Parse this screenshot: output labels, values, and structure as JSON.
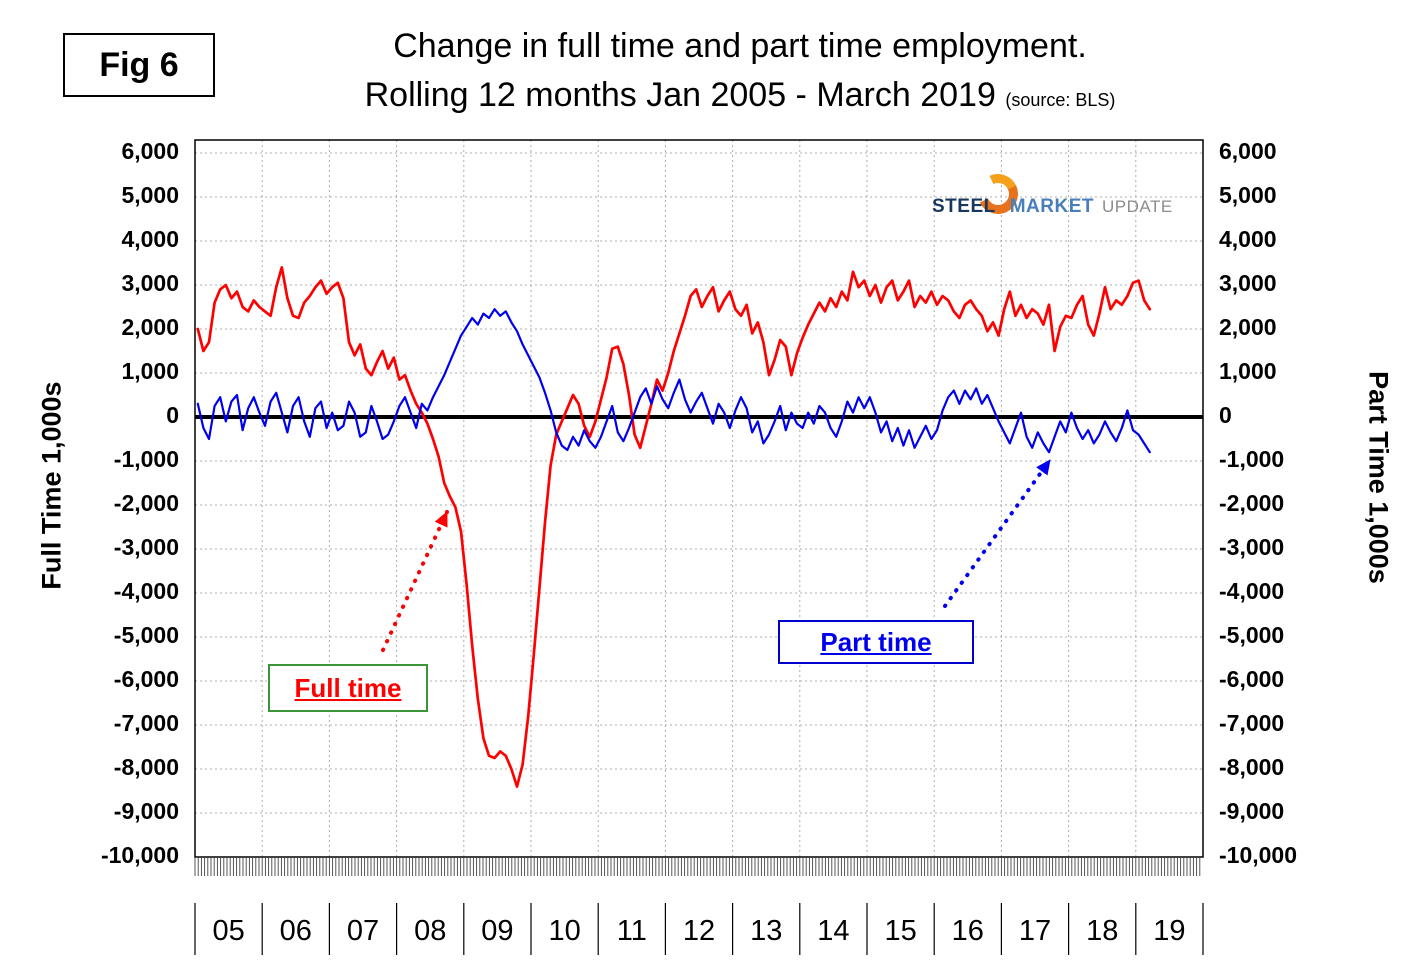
{
  "fig_label": "Fig 6",
  "title": {
    "line1": "Change in full time and part time employment.",
    "line2": "Rolling 12 months Jan 2005 - March 2019",
    "source": "(source: BLS)"
  },
  "logo": {
    "word1": "STEEL",
    "word2": "MARKET",
    "word3": "UPDATE"
  },
  "axes": {
    "left_title": "Full Time 1,000s",
    "right_title": "Part Time 1,000s"
  },
  "annotations": {
    "full_time_label": "Full time",
    "part_time_label": "Part time"
  },
  "colors": {
    "full_time": "#FF0000",
    "part_time": "#0000EE",
    "grid": "#ADADAD",
    "zero_line": "#000000",
    "frame": "#000000",
    "full_time_box_border": "#3C9639",
    "part_time_box_border": "#0000CC",
    "logo_orange": "#E8721C",
    "logo_orange_light": "#F5A11B",
    "logo_steel": "#17375E",
    "logo_market": "#4A7EBB",
    "logo_update": "#8C8C8C"
  },
  "chart_data": {
    "type": "line",
    "title": "Change in full time and part time employment. Rolling 12 months Jan 2005 - March 2019",
    "xlabel": "",
    "ylabel_left": "Full Time 1,000s",
    "ylabel_right": "Part Time 1,000s",
    "x_start": "2005-01",
    "x_end": "2019-03",
    "x_labels": [
      "05",
      "06",
      "07",
      "08",
      "09",
      "10",
      "11",
      "12",
      "13",
      "14",
      "15",
      "16",
      "17",
      "18",
      "19"
    ],
    "y_ticks": [
      6000,
      5000,
      4000,
      3000,
      2000,
      1000,
      0,
      -1000,
      -2000,
      -3000,
      -4000,
      -5000,
      -6000,
      -7000,
      -8000,
      -9000,
      -10000
    ],
    "ylim": [
      -10000,
      6000
    ],
    "grid": true,
    "legend_position": "annotation-boxes",
    "series": [
      {
        "name": "Full time",
        "color": "#FF0000",
        "values": [
          2000,
          1500,
          1700,
          2600,
          2900,
          3000,
          2700,
          2850,
          2500,
          2400,
          2650,
          2500,
          2400,
          2300,
          2950,
          3400,
          2700,
          2300,
          2250,
          2600,
          2750,
          2950,
          3100,
          2800,
          2950,
          3050,
          2700,
          1700,
          1400,
          1650,
          1100,
          950,
          1250,
          1500,
          1100,
          1350,
          850,
          950,
          600,
          300,
          100,
          -150,
          -500,
          -900,
          -1500,
          -1800,
          -2050,
          -2600,
          -3800,
          -5200,
          -6400,
          -7300,
          -7700,
          -7750,
          -7600,
          -7700,
          -8000,
          -8400,
          -7900,
          -6800,
          -5400,
          -3900,
          -2400,
          -1100,
          -400,
          -100,
          200,
          500,
          300,
          -200,
          -450,
          -100,
          400,
          900,
          1550,
          1600,
          1200,
          500,
          -400,
          -700,
          -200,
          300,
          850,
          600,
          1000,
          1500,
          1900,
          2300,
          2750,
          2900,
          2500,
          2750,
          2950,
          2400,
          2650,
          2850,
          2450,
          2300,
          2550,
          1900,
          2150,
          1700,
          950,
          1300,
          1750,
          1600,
          950,
          1450,
          1800,
          2100,
          2350,
          2600,
          2400,
          2700,
          2500,
          2850,
          2650,
          3300,
          2950,
          3100,
          2750,
          3000,
          2600,
          2950,
          3100,
          2650,
          2850,
          3100,
          2500,
          2750,
          2600,
          2850,
          2550,
          2750,
          2650,
          2400,
          2250,
          2550,
          2650,
          2450,
          2300,
          1950,
          2150,
          1850,
          2450,
          2850,
          2300,
          2550,
          2250,
          2450,
          2350,
          2100,
          2550,
          1500,
          2050,
          2300,
          2250,
          2550,
          2750,
          2100,
          1850,
          2350,
          2950,
          2450,
          2650,
          2550,
          2750,
          3050,
          3100,
          2650,
          2450
        ]
      },
      {
        "name": "Part time",
        "color": "#0000EE",
        "values": [
          300,
          -250,
          -500,
          250,
          450,
          -100,
          350,
          500,
          -300,
          200,
          450,
          100,
          -200,
          350,
          550,
          100,
          -350,
          250,
          450,
          -100,
          -450,
          200,
          350,
          -250,
          100,
          -300,
          -200,
          350,
          100,
          -450,
          -350,
          250,
          -100,
          -500,
          -400,
          -100,
          250,
          450,
          100,
          -250,
          300,
          150,
          450,
          700,
          950,
          1250,
          1550,
          1850,
          2050,
          2250,
          2100,
          2350,
          2250,
          2450,
          2300,
          2400,
          2150,
          1950,
          1650,
          1400,
          1150,
          900,
          550,
          150,
          -350,
          -650,
          -750,
          -450,
          -650,
          -300,
          -550,
          -700,
          -450,
          -100,
          250,
          -350,
          -550,
          -250,
          100,
          450,
          650,
          300,
          700,
          400,
          200,
          550,
          850,
          400,
          100,
          350,
          550,
          200,
          -150,
          300,
          100,
          -250,
          150,
          450,
          200,
          -350,
          -100,
          -600,
          -400,
          -100,
          250,
          -300,
          100,
          -150,
          -250,
          100,
          -150,
          250,
          100,
          -250,
          -450,
          -100,
          350,
          100,
          450,
          200,
          450,
          100,
          -350,
          -100,
          -550,
          -250,
          -650,
          -300,
          -700,
          -450,
          -200,
          -500,
          -300,
          150,
          450,
          600,
          300,
          600,
          400,
          650,
          300,
          500,
          200,
          -100,
          -350,
          -600,
          -250,
          100,
          -450,
          -700,
          -350,
          -600,
          -800,
          -450,
          -100,
          -350,
          100,
          -250,
          -500,
          -300,
          -600,
          -400,
          -100,
          -350,
          -550,
          -250,
          150,
          -300,
          -400,
          -600,
          -800
        ]
      }
    ]
  }
}
